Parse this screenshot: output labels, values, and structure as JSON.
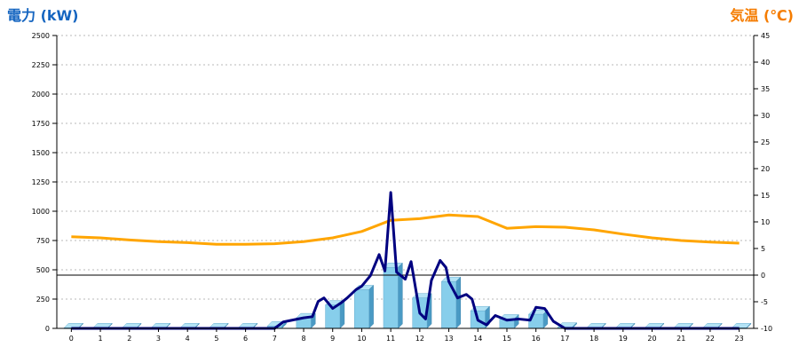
{
  "chart_data": {
    "type": "bar",
    "left_axis_label": "電力 (kW)",
    "right_axis_label": "気温 (℃)",
    "x_ticks": [
      "0",
      "1",
      "2",
      "3",
      "4",
      "5",
      "6",
      "7",
      "8",
      "9",
      "10",
      "11",
      "12",
      "13",
      "14",
      "15",
      "16",
      "17",
      "18",
      "19",
      "20",
      "21",
      "22",
      "23"
    ],
    "y_left": {
      "min": 0,
      "max": 2500,
      "ticks": [
        "0",
        "250",
        "500",
        "750",
        "1000",
        "1250",
        "1500",
        "1750",
        "2000",
        "2250",
        "2500"
      ]
    },
    "y_right": {
      "min": -10,
      "max": 45,
      "ticks": [
        "-10",
        "-5",
        "0",
        "5",
        "10",
        "15",
        "20",
        "25",
        "30",
        "35",
        "40",
        "45"
      ]
    },
    "grid": true,
    "bars": {
      "axis": "left",
      "color": "#87CEEB",
      "values": [
        5,
        5,
        5,
        5,
        5,
        5,
        5,
        20,
        90,
        200,
        330,
        520,
        260,
        400,
        150,
        80,
        120,
        10,
        5,
        5,
        5,
        5,
        5,
        5
      ]
    },
    "power_line": {
      "axis": "left",
      "color": "#000080",
      "points": [
        [
          0,
          0
        ],
        [
          1,
          0
        ],
        [
          2,
          0
        ],
        [
          3,
          0
        ],
        [
          4,
          0
        ],
        [
          5,
          0
        ],
        [
          6,
          0
        ],
        [
          7,
          0
        ],
        [
          7.3,
          55
        ],
        [
          7.6,
          70
        ],
        [
          8,
          90
        ],
        [
          8.3,
          100
        ],
        [
          8.5,
          230
        ],
        [
          8.7,
          260
        ],
        [
          9,
          170
        ],
        [
          9.3,
          220
        ],
        [
          9.5,
          260
        ],
        [
          9.8,
          330
        ],
        [
          10,
          360
        ],
        [
          10.3,
          450
        ],
        [
          10.6,
          630
        ],
        [
          10.8,
          490
        ],
        [
          11,
          1160
        ],
        [
          11.2,
          480
        ],
        [
          11.5,
          420
        ],
        [
          11.7,
          570
        ],
        [
          12,
          130
        ],
        [
          12.2,
          80
        ],
        [
          12.4,
          410
        ],
        [
          12.7,
          580
        ],
        [
          12.9,
          520
        ],
        [
          13,
          400
        ],
        [
          13.3,
          260
        ],
        [
          13.6,
          290
        ],
        [
          13.8,
          250
        ],
        [
          14,
          70
        ],
        [
          14.3,
          30
        ],
        [
          14.6,
          110
        ],
        [
          15,
          70
        ],
        [
          15.4,
          80
        ],
        [
          15.8,
          70
        ],
        [
          16,
          180
        ],
        [
          16.3,
          170
        ],
        [
          16.6,
          60
        ],
        [
          17,
          0
        ],
        [
          18,
          0
        ],
        [
          19,
          0
        ],
        [
          20,
          0
        ],
        [
          21,
          0
        ],
        [
          22,
          0
        ],
        [
          23,
          0
        ]
      ]
    },
    "temperature_line": {
      "axis": "right",
      "color": "#FFA500",
      "points": [
        [
          0,
          7.2
        ],
        [
          1,
          7
        ],
        [
          2,
          6.6
        ],
        [
          3,
          6.3
        ],
        [
          4,
          6.1
        ],
        [
          5,
          5.8
        ],
        [
          6,
          5.8
        ],
        [
          7,
          5.9
        ],
        [
          8,
          6.3
        ],
        [
          9,
          7
        ],
        [
          10,
          8.2
        ],
        [
          11,
          10.3
        ],
        [
          12,
          10.6
        ],
        [
          13,
          11.3
        ],
        [
          14,
          11
        ],
        [
          15,
          8.8
        ],
        [
          16,
          9.1
        ],
        [
          17,
          9
        ],
        [
          18,
          8.5
        ],
        [
          19,
          7.7
        ],
        [
          20,
          7
        ],
        [
          21,
          6.5
        ],
        [
          22,
          6.2
        ],
        [
          23,
          6
        ]
      ]
    },
    "reference_line": {
      "axis": "right",
      "value": 0
    }
  }
}
